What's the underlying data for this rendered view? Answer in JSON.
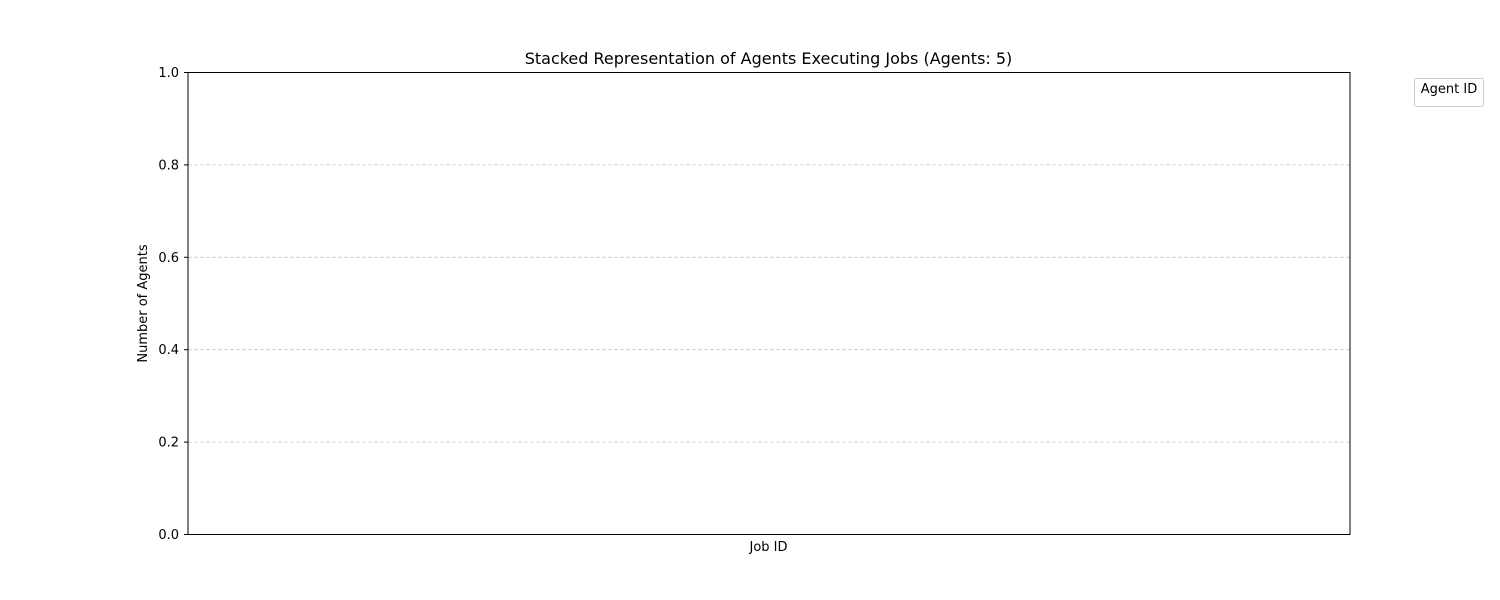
{
  "chart_data": {
    "type": "bar",
    "stacked": true,
    "title": "Stacked Representation of Agents Executing Jobs (Agents: 5)",
    "xlabel": "Job ID",
    "ylabel": "Number of Agents",
    "categories": [],
    "series": [],
    "ylim": [
      0,
      1.0
    ],
    "yticks": [
      "0.0",
      "0.2",
      "0.4",
      "0.6",
      "0.8",
      "1.0"
    ],
    "grid": {
      "axis": "y",
      "style": "dashed",
      "color": "#c8c8c8"
    },
    "legend": {
      "title": "Agent ID",
      "placement": "outside-top-right",
      "entries": []
    }
  }
}
